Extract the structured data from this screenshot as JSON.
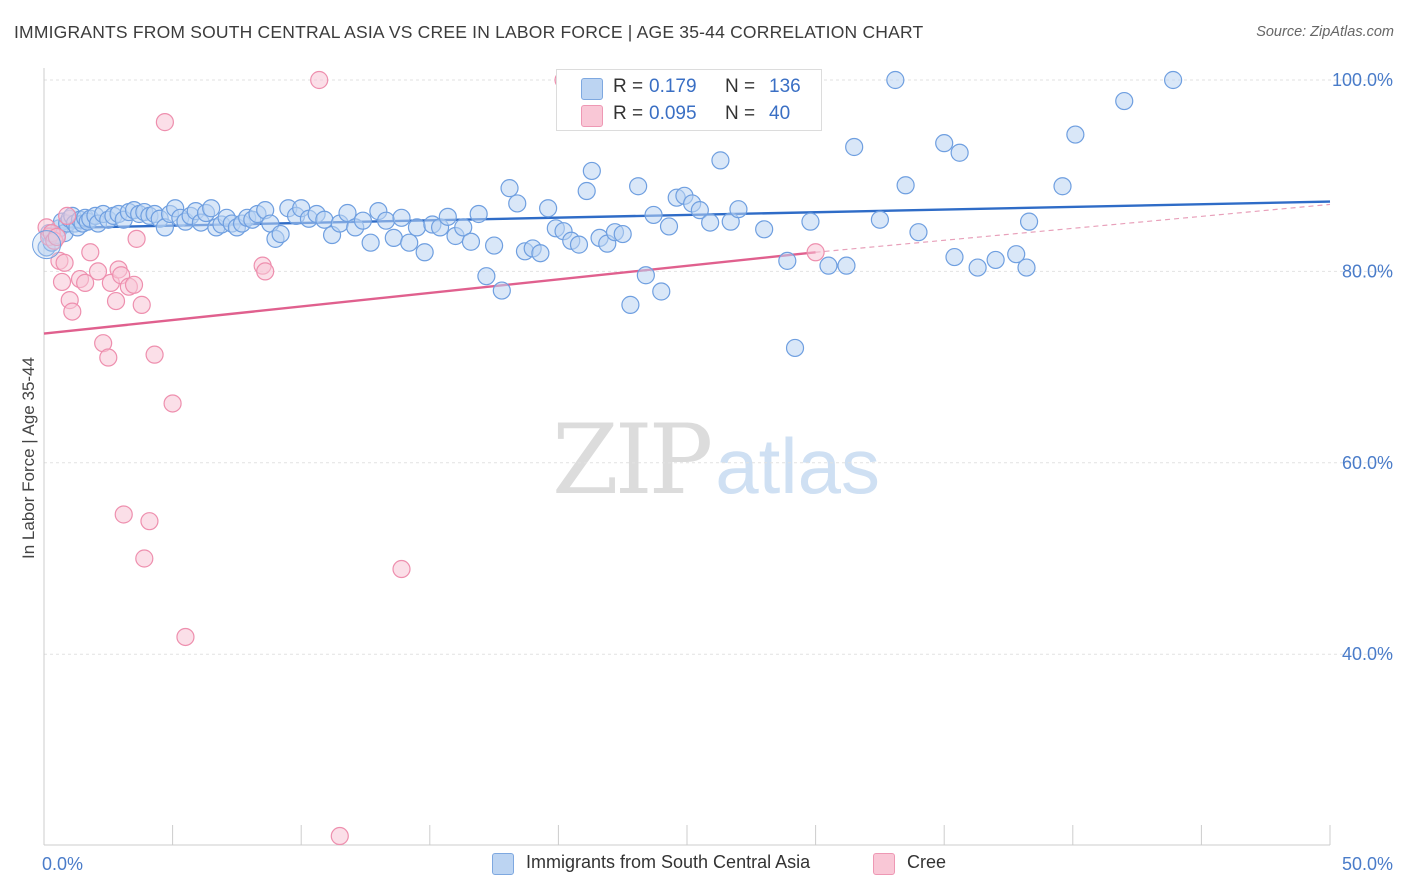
{
  "header": {
    "title": "IMMIGRANTS FROM SOUTH CENTRAL ASIA VS CREE IN LABOR FORCE | AGE 35-44 CORRELATION CHART",
    "source": "Source: ZipAtlas.com"
  },
  "watermark": {
    "zip": "ZIP",
    "atlas": "atlas"
  },
  "legend_top": {
    "rows": [
      {
        "r_label": "R =",
        "r_value": "0.179",
        "n_label": "N =",
        "n_value": "136",
        "color": "#a9c8ef"
      },
      {
        "r_label": "R =",
        "r_value": "0.095",
        "n_label": "N =",
        "n_value": "40",
        "color": "#f5b8cc"
      }
    ]
  },
  "chart_data": {
    "type": "scatter",
    "title": "IMMIGRANTS FROM SOUTH CENTRAL ASIA VS CREE IN LABOR FORCE | AGE 35-44 CORRELATION CHART",
    "xlabel": "",
    "ylabel": "In Labor Force | Age 35-44",
    "xlim": [
      0,
      50
    ],
    "ylim": [
      20,
      104
    ],
    "x_tick_labels": [
      "0.0%",
      "50.0%"
    ],
    "x_tick_label_values": [
      0,
      50
    ],
    "x_tick_marks": [
      0,
      5,
      10,
      15,
      20,
      25,
      30,
      35,
      40,
      45,
      50
    ],
    "y_ticks": [
      40,
      60,
      80,
      100
    ],
    "y_tick_labels": [
      "40.0%",
      "60.0%",
      "80.0%",
      "100.0%"
    ],
    "grid": true,
    "legend_position": "bottom",
    "series": [
      {
        "name": "Immigrants from South Central Asia",
        "color": "#6f9fe0",
        "fill": "#b9d3f2",
        "trend": {
          "x": [
            0,
            50
          ],
          "y": [
            84.5,
            87.3
          ],
          "color": "#2f6cc7"
        },
        "points": [
          [
            0.1,
            82.5
          ],
          [
            0.2,
            84.0
          ],
          [
            0.3,
            83.0
          ],
          [
            0.5,
            83.8
          ],
          [
            0.6,
            84.5
          ],
          [
            0.7,
            85.2
          ],
          [
            0.8,
            84.0
          ],
          [
            0.9,
            85.0
          ],
          [
            1.0,
            85.5
          ],
          [
            1.1,
            85.8
          ],
          [
            1.2,
            85.0
          ],
          [
            1.3,
            84.6
          ],
          [
            1.4,
            85.4
          ],
          [
            1.5,
            85.0
          ],
          [
            1.6,
            85.6
          ],
          [
            1.7,
            85.2
          ],
          [
            1.8,
            85.5
          ],
          [
            2.0,
            85.8
          ],
          [
            2.1,
            85.0
          ],
          [
            2.3,
            86.0
          ],
          [
            2.5,
            85.4
          ],
          [
            2.7,
            85.8
          ],
          [
            2.9,
            86.0
          ],
          [
            3.1,
            85.4
          ],
          [
            3.3,
            86.2
          ],
          [
            3.5,
            86.4
          ],
          [
            3.7,
            86.0
          ],
          [
            3.9,
            86.2
          ],
          [
            4.1,
            85.8
          ],
          [
            4.3,
            86.0
          ],
          [
            4.5,
            85.5
          ],
          [
            4.7,
            84.6
          ],
          [
            4.9,
            86.0
          ],
          [
            5.1,
            86.6
          ],
          [
            5.3,
            85.6
          ],
          [
            5.5,
            85.2
          ],
          [
            5.7,
            85.8
          ],
          [
            5.9,
            86.3
          ],
          [
            6.1,
            85.1
          ],
          [
            6.3,
            86.1
          ],
          [
            6.5,
            86.6
          ],
          [
            6.7,
            84.6
          ],
          [
            6.9,
            84.9
          ],
          [
            7.1,
            85.6
          ],
          [
            7.3,
            85.0
          ],
          [
            7.5,
            84.6
          ],
          [
            7.7,
            85.0
          ],
          [
            7.9,
            85.6
          ],
          [
            8.1,
            85.4
          ],
          [
            8.3,
            86.0
          ],
          [
            8.6,
            86.4
          ],
          [
            8.8,
            85.0
          ],
          [
            9.0,
            83.4
          ],
          [
            9.2,
            83.9
          ],
          [
            9.5,
            86.6
          ],
          [
            9.8,
            85.8
          ],
          [
            10.0,
            86.6
          ],
          [
            10.3,
            85.5
          ],
          [
            10.6,
            86.0
          ],
          [
            10.9,
            85.4
          ],
          [
            11.2,
            83.8
          ],
          [
            11.5,
            85.0
          ],
          [
            11.8,
            86.1
          ],
          [
            12.1,
            84.6
          ],
          [
            12.4,
            85.3
          ],
          [
            12.7,
            83.0
          ],
          [
            13.0,
            86.3
          ],
          [
            13.3,
            85.3
          ],
          [
            13.6,
            83.5
          ],
          [
            13.9,
            85.6
          ],
          [
            14.2,
            83.0
          ],
          [
            14.5,
            84.6
          ],
          [
            14.8,
            82.0
          ],
          [
            15.1,
            84.9
          ],
          [
            15.4,
            84.6
          ],
          [
            15.7,
            85.7
          ],
          [
            16.0,
            83.7
          ],
          [
            16.3,
            84.6
          ],
          [
            16.6,
            83.1
          ],
          [
            16.9,
            86.0
          ],
          [
            17.2,
            79.5
          ],
          [
            17.5,
            82.7
          ],
          [
            17.8,
            78.0
          ],
          [
            18.1,
            88.7
          ],
          [
            18.4,
            87.1
          ],
          [
            18.7,
            82.1
          ],
          [
            19.0,
            82.4
          ],
          [
            19.3,
            81.9
          ],
          [
            19.6,
            86.6
          ],
          [
            19.9,
            84.5
          ],
          [
            20.2,
            84.2
          ],
          [
            20.5,
            83.2
          ],
          [
            20.8,
            82.8
          ],
          [
            21.1,
            88.4
          ],
          [
            21.3,
            90.5
          ],
          [
            21.6,
            83.5
          ],
          [
            21.9,
            82.9
          ],
          [
            22.2,
            84.1
          ],
          [
            22.5,
            83.9
          ],
          [
            22.8,
            76.5
          ],
          [
            23.1,
            88.9
          ],
          [
            23.4,
            79.6
          ],
          [
            23.7,
            85.9
          ],
          [
            24.0,
            77.9
          ],
          [
            24.3,
            84.7
          ],
          [
            24.6,
            87.7
          ],
          [
            24.9,
            87.9
          ],
          [
            25.2,
            87.1
          ],
          [
            25.5,
            86.4
          ],
          [
            25.9,
            85.1
          ],
          [
            26.3,
            91.6
          ],
          [
            26.7,
            85.2
          ],
          [
            27.0,
            86.5
          ],
          [
            28.0,
            84.4
          ],
          [
            28.9,
            81.1
          ],
          [
            29.2,
            72.0
          ],
          [
            29.8,
            85.2
          ],
          [
            30.5,
            80.6
          ],
          [
            31.2,
            80.6
          ],
          [
            31.5,
            93.0
          ],
          [
            32.5,
            85.4
          ],
          [
            33.1,
            100.0
          ],
          [
            33.5,
            89.0
          ],
          [
            34.0,
            84.1
          ],
          [
            35.0,
            93.4
          ],
          [
            35.6,
            92.4
          ],
          [
            35.4,
            81.5
          ],
          [
            36.3,
            80.4
          ],
          [
            37.0,
            81.2
          ],
          [
            37.8,
            81.8
          ],
          [
            38.2,
            80.4
          ],
          [
            38.3,
            85.2
          ],
          [
            39.6,
            88.9
          ],
          [
            40.1,
            94.3
          ],
          [
            42.0,
            97.8
          ],
          [
            43.9,
            100.0
          ]
        ]
      },
      {
        "name": "Cree",
        "color": "#ee8fae",
        "fill": "#f8c5d5",
        "trend": {
          "x": [
            0,
            30
          ],
          "y": [
            73.5,
            82.0
          ],
          "color": "#e0608e"
        },
        "trend_extension": {
          "x": [
            30,
            50
          ],
          "y": [
            82.0,
            87.0
          ]
        },
        "points": [
          [
            0.1,
            84.6
          ],
          [
            0.2,
            83.6
          ],
          [
            0.3,
            84.0
          ],
          [
            0.4,
            83.2
          ],
          [
            0.5,
            83.6
          ],
          [
            0.6,
            81.1
          ],
          [
            0.7,
            78.9
          ],
          [
            0.8,
            80.9
          ],
          [
            0.9,
            85.8
          ],
          [
            1.0,
            77.0
          ],
          [
            1.1,
            75.8
          ],
          [
            1.4,
            79.2
          ],
          [
            1.6,
            78.8
          ],
          [
            1.8,
            82.0
          ],
          [
            2.1,
            80.0
          ],
          [
            2.3,
            72.5
          ],
          [
            2.5,
            71.0
          ],
          [
            2.6,
            78.8
          ],
          [
            2.8,
            76.9
          ],
          [
            2.9,
            80.2
          ],
          [
            3.0,
            79.6
          ],
          [
            3.1,
            54.6
          ],
          [
            3.3,
            78.4
          ],
          [
            3.5,
            78.6
          ],
          [
            3.6,
            83.4
          ],
          [
            3.8,
            76.5
          ],
          [
            3.9,
            50.0
          ],
          [
            4.1,
            53.9
          ],
          [
            4.3,
            71.3
          ],
          [
            4.7,
            95.6
          ],
          [
            5.0,
            66.2
          ],
          [
            5.5,
            41.8
          ],
          [
            8.5,
            80.6
          ],
          [
            8.6,
            80.0
          ],
          [
            10.7,
            100.0
          ],
          [
            11.5,
            21.0
          ],
          [
            13.9,
            48.9
          ],
          [
            20.2,
            100.0
          ],
          [
            28.5,
            100.0
          ],
          [
            30.0,
            82.0
          ]
        ]
      }
    ]
  }
}
